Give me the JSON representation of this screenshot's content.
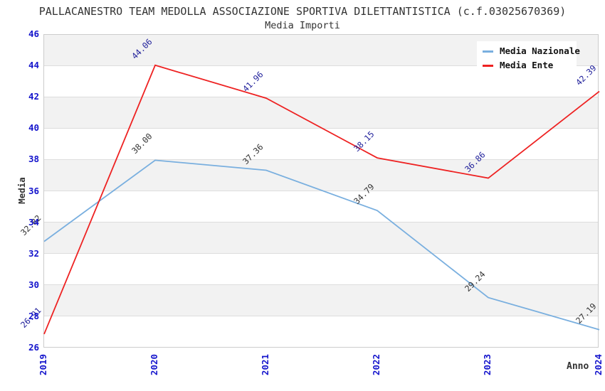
{
  "title": "PALLACANESTRO TEAM MEDOLLA ASSOCIAZIONE SPORTIVA DILETTANTISTICA (c.f.03025670369)",
  "subtitle": "Media Importi",
  "chart_data": {
    "type": "line",
    "x": [
      "2019",
      "2020",
      "2021",
      "2022",
      "2023",
      "2024"
    ],
    "xlabel": "Anno",
    "ylabel": "Media",
    "ylim": [
      26,
      46
    ],
    "yticks": [
      46,
      44,
      42,
      40,
      38,
      36,
      34,
      32,
      30,
      28,
      26
    ],
    "grid": "horizontal gridlines every 2 units with alternating gray/white bands",
    "legend_position": "top-right",
    "series": [
      {
        "name": "Media Nazionale",
        "color": "#79afdf",
        "label_color": "#333333",
        "values": [
          32.82,
          38.0,
          37.36,
          34.79,
          29.24,
          27.19
        ]
      },
      {
        "name": "Media Ente",
        "color": "#ee2222",
        "label_color": "#1c1c99",
        "values": [
          26.91,
          44.06,
          41.96,
          38.15,
          36.86,
          42.39
        ]
      }
    ]
  },
  "colors": {
    "axis_tick_label": "#1414cc",
    "band_gray": "#f2f2f2",
    "gridline": "#dddddd",
    "plot_border": "#cccccc",
    "title_text": "#333333"
  }
}
